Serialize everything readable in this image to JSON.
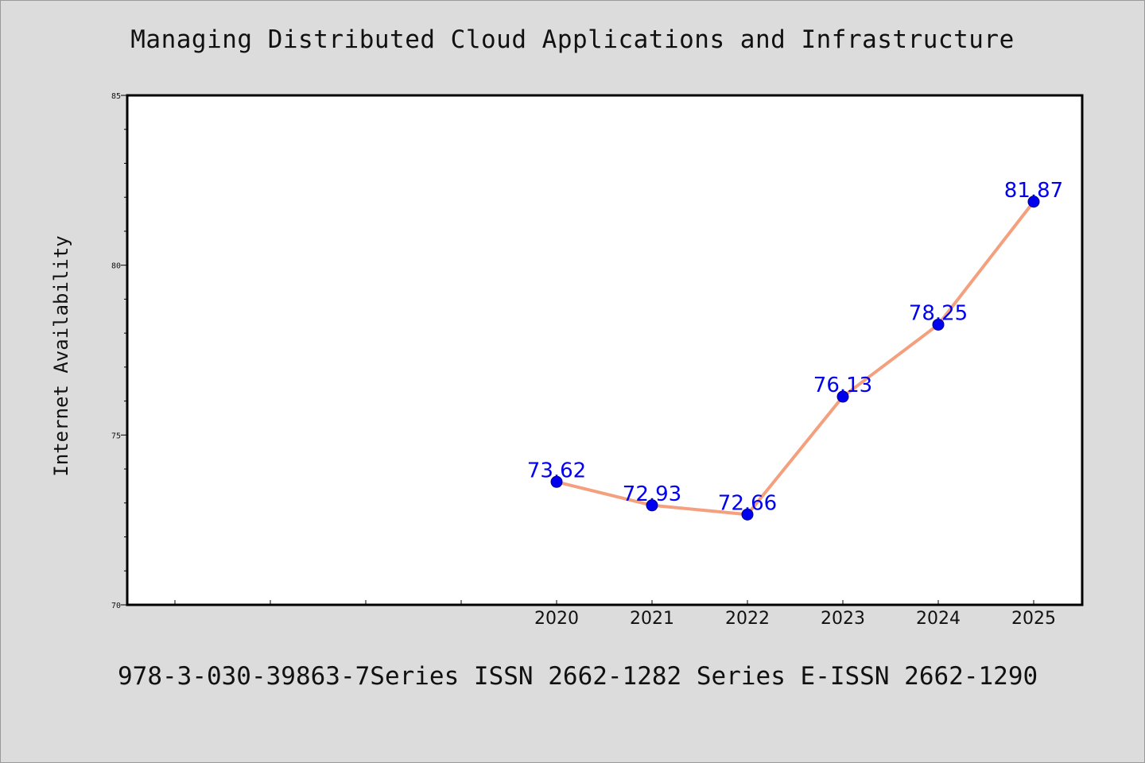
{
  "title": "Managing Distributed Cloud Applications and Infrastructure",
  "footer": "978-3-030-39863-7Series ISSN 2662-1282 Series E-ISSN 2662-1290",
  "colors": {
    "background": "#dcdcdc",
    "plot_background": "#ffffff",
    "line": "#f4a07e",
    "marker": "#0000ee",
    "label": "#0000ee"
  },
  "chart_data": {
    "type": "line",
    "title": "Managing Distributed Cloud Applications and Infrastructure",
    "xlabel": "",
    "ylabel": "Internet Availability",
    "x": [
      "2020",
      "2021",
      "2022",
      "2023",
      "2024",
      "2025"
    ],
    "series": [
      {
        "values": [
          73.62,
          72.93,
          72.66,
          76.13,
          78.25,
          81.87
        ]
      }
    ],
    "data_labels": [
      "73.62",
      "72.93",
      "72.66",
      "76.13",
      "78.25",
      "81.87"
    ],
    "ylim": [
      70,
      85
    ],
    "yticks": [
      "70",
      "75",
      "80",
      "85"
    ],
    "grid": false,
    "legend": "none"
  }
}
